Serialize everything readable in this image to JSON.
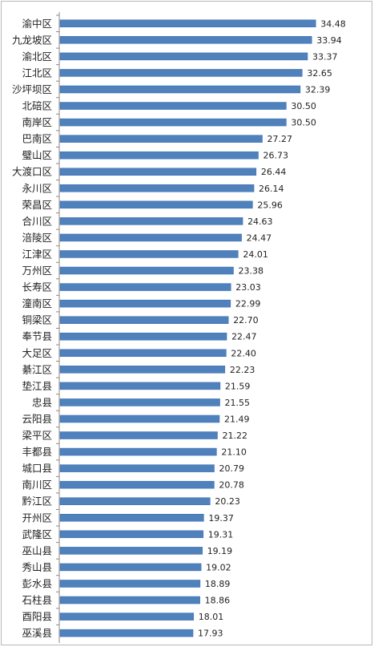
{
  "chart_data": {
    "type": "bar",
    "orientation": "horizontal",
    "categories": [
      "渝中区",
      "九龙坡区",
      "渝北区",
      "江北区",
      "沙坪坝区",
      "北碚区",
      "南岸区",
      "巴南区",
      "璧山区",
      "大渡口区",
      "永川区",
      "荣昌区",
      "合川区",
      "涪陵区",
      "江津区",
      "万州区",
      "长寿区",
      "潼南区",
      "铜梁区",
      "奉节县",
      "大足区",
      "綦江区",
      "垫江县",
      "忠县",
      "云阳县",
      "梁平区",
      "丰都县",
      "城口县",
      "南川区",
      "黔江区",
      "开州区",
      "武隆区",
      "巫山县",
      "秀山县",
      "彭水县",
      "石柱县",
      "酉阳县",
      "巫溪县"
    ],
    "values": [
      34.48,
      33.94,
      33.37,
      32.65,
      32.39,
      30.5,
      30.5,
      27.27,
      26.73,
      26.44,
      26.14,
      25.96,
      24.63,
      24.47,
      24.01,
      23.38,
      23.03,
      22.99,
      22.7,
      22.47,
      22.4,
      22.23,
      21.59,
      21.55,
      21.49,
      21.22,
      21.1,
      20.79,
      20.78,
      20.23,
      19.37,
      19.31,
      19.19,
      19.02,
      18.89,
      18.86,
      18.01,
      17.93
    ],
    "value_labels": [
      "34.48",
      "33.94",
      "33.37",
      "32.65",
      "32.39",
      "30.50",
      "30.50",
      "27.27",
      "26.73",
      "26.44",
      "26.14",
      "25.96",
      "24.63",
      "24.47",
      "24.01",
      "23.38",
      "23.03",
      "22.99",
      "22.70",
      "22.47",
      "22.40",
      "22.23",
      "21.59",
      "21.55",
      "21.49",
      "21.22",
      "21.10",
      "20.79",
      "20.78",
      "20.23",
      "19.37",
      "19.31",
      "19.19",
      "19.02",
      "18.89",
      "18.86",
      "18.01",
      "17.93"
    ],
    "xlim": [
      0,
      38
    ],
    "grid": false,
    "legend": "none",
    "title": "",
    "xlabel": "",
    "ylabel": "",
    "colors": {
      "bar": "#4f81bd",
      "bar_edge": "#3a6aa8",
      "axis": "#888888",
      "text": "#222222"
    }
  }
}
